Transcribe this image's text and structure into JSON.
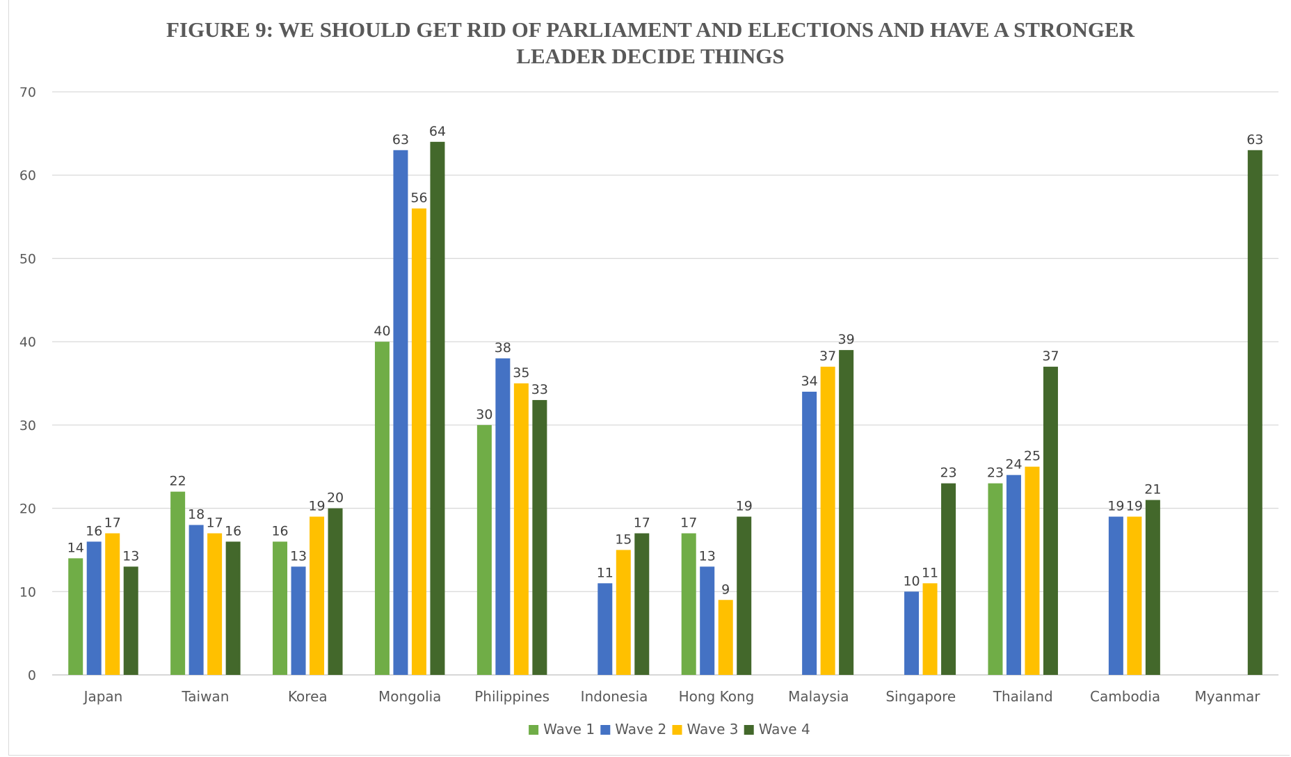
{
  "chart_data": {
    "type": "bar",
    "title_lines": [
      "FIGURE 9: WE SHOULD GET RID OF PARLIAMENT AND ELECTIONS AND HAVE A STRONGER",
      "LEADER DECIDE THINGS"
    ],
    "categories": [
      "Japan",
      "Taiwan",
      "Korea",
      "Mongolia",
      "Philippines",
      "Indonesia",
      "Hong Kong",
      "Malaysia",
      "Singapore",
      "Thailand",
      "Cambodia",
      "Myanmar"
    ],
    "series": [
      {
        "name": "Wave 1",
        "color": "#70ad47",
        "values": [
          14,
          22,
          16,
          40,
          30,
          null,
          17,
          null,
          null,
          23,
          null,
          null
        ]
      },
      {
        "name": "Wave 2",
        "color": "#4472c4",
        "values": [
          16,
          18,
          13,
          63,
          38,
          11,
          13,
          34,
          10,
          24,
          19,
          null
        ]
      },
      {
        "name": "Wave 3",
        "color": "#ffc000",
        "values": [
          17,
          17,
          19,
          56,
          35,
          15,
          9,
          37,
          11,
          25,
          19,
          null
        ]
      },
      {
        "name": "Wave 4",
        "color": "#43682b",
        "values": [
          13,
          16,
          20,
          64,
          33,
          17,
          19,
          39,
          23,
          37,
          21,
          63
        ]
      }
    ],
    "ylim": [
      0,
      70
    ],
    "yticks": [
      0,
      10,
      20,
      30,
      40,
      50,
      60,
      70
    ],
    "grid": true,
    "legend_position": "bottom",
    "data_labels": true
  }
}
